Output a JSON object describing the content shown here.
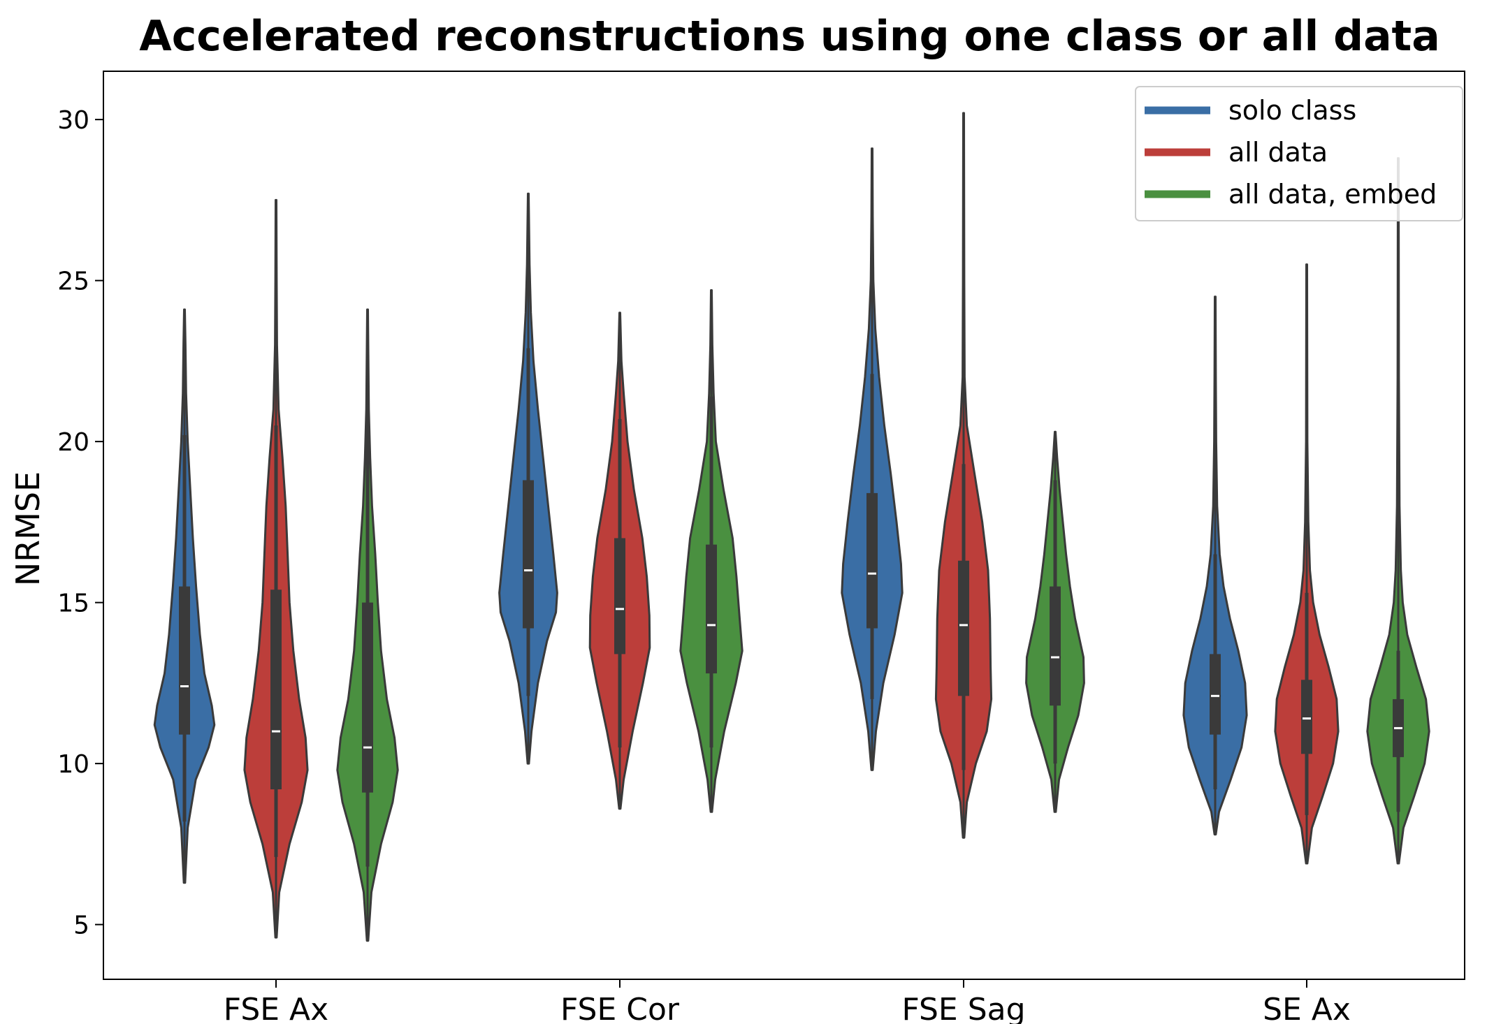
{
  "chart_data": {
    "type": "violin",
    "title": "Accelerated reconstructions using one class or all data",
    "xlabel": "",
    "ylabel": "NRMSE",
    "ylim": [
      3.3,
      31.5
    ],
    "yticks": [
      5,
      10,
      15,
      20,
      25,
      30
    ],
    "categories": [
      "FSE Ax",
      "FSE Cor",
      "FSE Sag",
      "SE Ax"
    ],
    "legend_position": "top-right",
    "series": [
      {
        "name": "solo class",
        "color": "#3a6ea5",
        "violins": [
          {
            "min": 6.3,
            "max": 24.1,
            "q1": 10.9,
            "median": 12.4,
            "q3": 15.5,
            "whisker_low": 8.2,
            "whisker_high": 20.2,
            "profile": [
              [
                6.3,
                0.02
              ],
              [
                8.0,
                0.1
              ],
              [
                9.5,
                0.35
              ],
              [
                10.5,
                0.75
              ],
              [
                11.2,
                0.93
              ],
              [
                11.8,
                0.85
              ],
              [
                12.8,
                0.62
              ],
              [
                14.0,
                0.48
              ],
              [
                15.5,
                0.36
              ],
              [
                17.0,
                0.26
              ],
              [
                18.5,
                0.18
              ],
              [
                20.0,
                0.1
              ],
              [
                21.5,
                0.05
              ],
              [
                23.0,
                0.03
              ],
              [
                24.1,
                0.01
              ]
            ]
          },
          {
            "min": 10.0,
            "max": 27.7,
            "q1": 14.2,
            "median": 16.0,
            "q3": 18.8,
            "whisker_low": 12.1,
            "whisker_high": 22.9,
            "profile": [
              [
                10.0,
                0.02
              ],
              [
                11.0,
                0.1
              ],
              [
                12.5,
                0.3
              ],
              [
                13.8,
                0.58
              ],
              [
                14.7,
                0.86
              ],
              [
                15.3,
                0.9
              ],
              [
                16.5,
                0.78
              ],
              [
                18.0,
                0.62
              ],
              [
                19.5,
                0.46
              ],
              [
                21.0,
                0.3
              ],
              [
                22.5,
                0.16
              ],
              [
                24.0,
                0.08
              ],
              [
                25.5,
                0.04
              ],
              [
                27.7,
                0.01
              ]
            ]
          },
          {
            "min": 9.8,
            "max": 29.1,
            "q1": 14.2,
            "median": 15.9,
            "q3": 18.4,
            "whisker_low": 12.0,
            "whisker_high": 22.1,
            "profile": [
              [
                9.8,
                0.02
              ],
              [
                11.0,
                0.12
              ],
              [
                12.5,
                0.35
              ],
              [
                14.0,
                0.7
              ],
              [
                15.3,
                0.94
              ],
              [
                16.2,
                0.9
              ],
              [
                17.5,
                0.76
              ],
              [
                19.0,
                0.58
              ],
              [
                20.5,
                0.38
              ],
              [
                22.0,
                0.22
              ],
              [
                23.5,
                0.1
              ],
              [
                25.0,
                0.04
              ],
              [
                27.0,
                0.02
              ],
              [
                29.1,
                0.01
              ]
            ]
          },
          {
            "min": 7.8,
            "max": 24.5,
            "q1": 10.9,
            "median": 12.1,
            "q3": 13.4,
            "whisker_low": 9.2,
            "whisker_high": 16.5,
            "profile": [
              [
                7.8,
                0.02
              ],
              [
                8.5,
                0.12
              ],
              [
                9.5,
                0.48
              ],
              [
                10.5,
                0.82
              ],
              [
                11.5,
                0.98
              ],
              [
                12.5,
                0.93
              ],
              [
                13.5,
                0.72
              ],
              [
                14.5,
                0.46
              ],
              [
                15.5,
                0.26
              ],
              [
                16.5,
                0.14
              ],
              [
                18.0,
                0.06
              ],
              [
                20.0,
                0.03
              ],
              [
                22.0,
                0.02
              ],
              [
                24.5,
                0.01
              ]
            ]
          }
        ]
      },
      {
        "name": "all data",
        "color": "#bc3e3a",
        "violins": [
          {
            "min": 4.6,
            "max": 27.5,
            "q1": 9.2,
            "median": 11.0,
            "q3": 15.4,
            "whisker_low": 7.1,
            "whisker_high": 20.5,
            "profile": [
              [
                4.6,
                0.02
              ],
              [
                6.0,
                0.1
              ],
              [
                7.5,
                0.42
              ],
              [
                8.8,
                0.8
              ],
              [
                9.8,
                0.98
              ],
              [
                10.8,
                0.92
              ],
              [
                12.0,
                0.72
              ],
              [
                13.5,
                0.54
              ],
              [
                15.0,
                0.42
              ],
              [
                16.5,
                0.36
              ],
              [
                18.0,
                0.3
              ],
              [
                19.5,
                0.2
              ],
              [
                21.0,
                0.08
              ],
              [
                23.0,
                0.03
              ],
              [
                25.0,
                0.02
              ],
              [
                27.5,
                0.01
              ]
            ]
          },
          {
            "min": 8.6,
            "max": 24.0,
            "q1": 13.4,
            "median": 14.8,
            "q3": 17.0,
            "whisker_low": 10.5,
            "whisker_high": 20.7,
            "profile": [
              [
                8.6,
                0.02
              ],
              [
                9.5,
                0.12
              ],
              [
                11.0,
                0.4
              ],
              [
                12.5,
                0.72
              ],
              [
                13.6,
                0.93
              ],
              [
                14.6,
                0.92
              ],
              [
                15.8,
                0.84
              ],
              [
                17.0,
                0.7
              ],
              [
                18.5,
                0.44
              ],
              [
                20.0,
                0.24
              ],
              [
                21.5,
                0.12
              ],
              [
                22.5,
                0.05
              ],
              [
                24.0,
                0.01
              ]
            ]
          },
          {
            "min": 7.7,
            "max": 30.2,
            "q1": 12.1,
            "median": 14.3,
            "q3": 16.3,
            "whisker_low": 9.8,
            "whisker_high": 19.3,
            "profile": [
              [
                7.7,
                0.02
              ],
              [
                8.8,
                0.1
              ],
              [
                10.0,
                0.38
              ],
              [
                11.0,
                0.72
              ],
              [
                12.0,
                0.86
              ],
              [
                13.0,
                0.84
              ],
              [
                14.5,
                0.82
              ],
              [
                16.0,
                0.76
              ],
              [
                17.5,
                0.58
              ],
              [
                19.0,
                0.34
              ],
              [
                20.5,
                0.1
              ],
              [
                22.0,
                0.03
              ],
              [
                25.0,
                0.02
              ],
              [
                30.2,
                0.01
              ]
            ]
          },
          {
            "min": 6.9,
            "max": 25.5,
            "q1": 10.3,
            "median": 11.4,
            "q3": 12.6,
            "whisker_low": 8.4,
            "whisker_high": 15.3,
            "profile": [
              [
                6.9,
                0.02
              ],
              [
                8.0,
                0.16
              ],
              [
                9.0,
                0.5
              ],
              [
                10.0,
                0.82
              ],
              [
                11.0,
                0.98
              ],
              [
                12.0,
                0.93
              ],
              [
                13.0,
                0.68
              ],
              [
                14.0,
                0.4
              ],
              [
                15.0,
                0.2
              ],
              [
                16.0,
                0.1
              ],
              [
                17.5,
                0.05
              ],
              [
                20.0,
                0.02
              ],
              [
                25.5,
                0.01
              ]
            ]
          }
        ]
      },
      {
        "name": "all data, embed",
        "color": "#4a9040",
        "violins": [
          {
            "min": 4.5,
            "max": 24.1,
            "q1": 9.1,
            "median": 10.5,
            "q3": 15.0,
            "whisker_low": 6.8,
            "whisker_high": 20.0,
            "profile": [
              [
                4.5,
                0.02
              ],
              [
                6.0,
                0.12
              ],
              [
                7.5,
                0.42
              ],
              [
                8.8,
                0.78
              ],
              [
                9.8,
                0.94
              ],
              [
                10.8,
                0.84
              ],
              [
                12.0,
                0.6
              ],
              [
                13.5,
                0.42
              ],
              [
                15.0,
                0.32
              ],
              [
                16.5,
                0.24
              ],
              [
                18.0,
                0.14
              ],
              [
                19.5,
                0.08
              ],
              [
                21.0,
                0.04
              ],
              [
                24.1,
                0.01
              ]
            ]
          },
          {
            "min": 8.5,
            "max": 24.7,
            "q1": 12.8,
            "median": 14.3,
            "q3": 16.8,
            "whisker_low": 10.5,
            "whisker_high": 21.4,
            "profile": [
              [
                8.5,
                0.02
              ],
              [
                9.5,
                0.12
              ],
              [
                11.0,
                0.4
              ],
              [
                12.5,
                0.76
              ],
              [
                13.5,
                0.96
              ],
              [
                14.5,
                0.88
              ],
              [
                15.8,
                0.78
              ],
              [
                17.0,
                0.66
              ],
              [
                18.5,
                0.38
              ],
              [
                20.0,
                0.14
              ],
              [
                21.5,
                0.07
              ],
              [
                23.0,
                0.03
              ],
              [
                24.7,
                0.01
              ]
            ]
          },
          {
            "min": 8.5,
            "max": 20.3,
            "q1": 11.8,
            "median": 13.3,
            "q3": 15.5,
            "whisker_low": 10.0,
            "whisker_high": 18.8,
            "profile": [
              [
                8.5,
                0.02
              ],
              [
                9.5,
                0.12
              ],
              [
                10.5,
                0.4
              ],
              [
                11.5,
                0.72
              ],
              [
                12.5,
                0.9
              ],
              [
                13.3,
                0.88
              ],
              [
                14.5,
                0.62
              ],
              [
                15.5,
                0.46
              ],
              [
                16.5,
                0.34
              ],
              [
                17.5,
                0.24
              ],
              [
                18.5,
                0.14
              ],
              [
                19.5,
                0.06
              ],
              [
                20.3,
                0.01
              ]
            ]
          },
          {
            "min": 6.9,
            "max": 28.8,
            "q1": 10.2,
            "median": 11.1,
            "q3": 12.0,
            "whisker_low": 8.5,
            "whisker_high": 13.5,
            "profile": [
              [
                6.9,
                0.02
              ],
              [
                8.0,
                0.16
              ],
              [
                9.0,
                0.5
              ],
              [
                10.0,
                0.82
              ],
              [
                11.0,
                0.96
              ],
              [
                12.0,
                0.86
              ],
              [
                13.0,
                0.56
              ],
              [
                14.0,
                0.28
              ],
              [
                15.0,
                0.14
              ],
              [
                16.0,
                0.08
              ],
              [
                18.0,
                0.04
              ],
              [
                22.0,
                0.02
              ],
              [
                28.8,
                0.01
              ]
            ]
          }
        ]
      }
    ]
  }
}
